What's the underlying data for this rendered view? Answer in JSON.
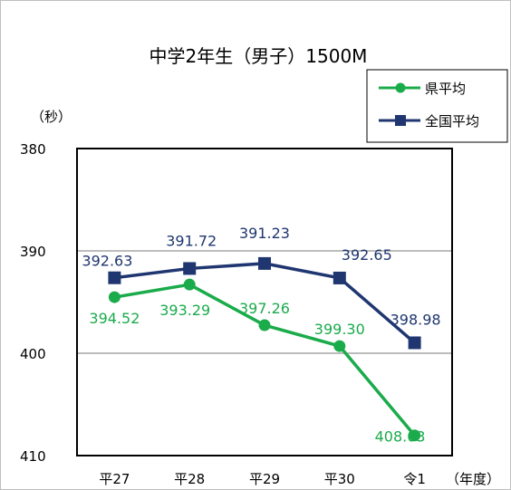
{
  "chart_data": {
    "type": "line",
    "title": "中学2年生（男子）1500M",
    "ylabel": "（秒）",
    "xlabel": "（年度）",
    "categories": [
      "平27",
      "平28",
      "平29",
      "平30",
      "令1"
    ],
    "ylim": [
      380,
      410
    ],
    "y_inverted": true,
    "y_ticks": [
      "380",
      "390",
      "400",
      "410"
    ],
    "grid": true,
    "legend_position": "top-right",
    "series": [
      {
        "name": "県平均",
        "color": "#1aab4b",
        "marker": "circle",
        "values": [
          394.52,
          393.29,
          397.26,
          399.3,
          408.03
        ],
        "labels": [
          "394.52",
          "393.29",
          "397.26",
          "399.30",
          "408.03"
        ]
      },
      {
        "name": "全国平均",
        "color": "#1f3670",
        "marker": "square",
        "values": [
          392.63,
          391.72,
          391.23,
          392.65,
          398.98
        ],
        "labels": [
          "392.63",
          "391.72",
          "391.23",
          "392.65",
          "398.98"
        ]
      }
    ]
  }
}
